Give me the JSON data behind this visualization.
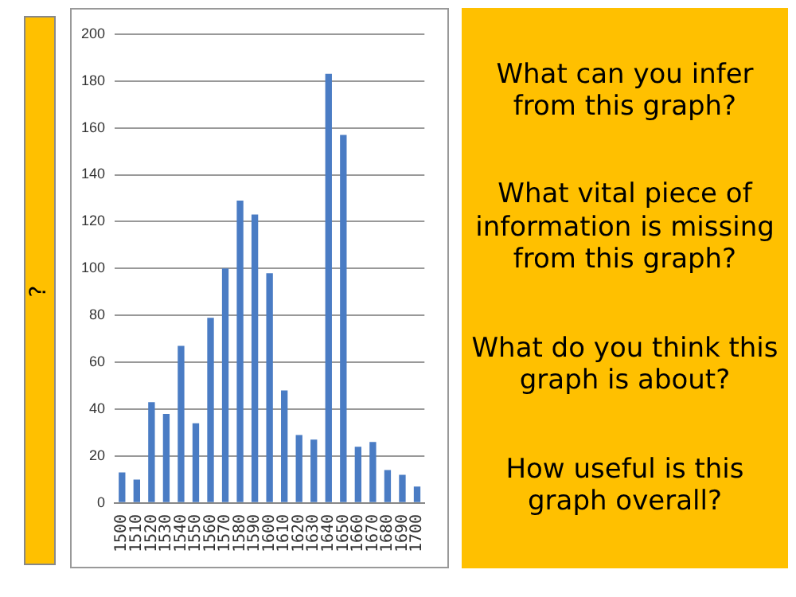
{
  "chart_data": {
    "type": "bar",
    "ylabel": "?",
    "categories": [
      "1500",
      "1510",
      "1520",
      "1530",
      "1540",
      "1550",
      "1560",
      "1570",
      "1580",
      "1590",
      "1600",
      "1610",
      "1620",
      "1630",
      "1640",
      "1650",
      "1660",
      "1670",
      "1680",
      "1690",
      "1700"
    ],
    "values": [
      13,
      10,
      43,
      38,
      67,
      34,
      79,
      100,
      129,
      123,
      98,
      48,
      29,
      27,
      183,
      157,
      24,
      26,
      14,
      12,
      7
    ],
    "color": "#4a7cc4",
    "ylim": [
      0,
      200
    ],
    "yticks": [
      0,
      20,
      40,
      60,
      80,
      100,
      120,
      140,
      160,
      180,
      200
    ],
    "grid": "y",
    "annotations": [
      "What can you infer from this graph?",
      "What vital piece of information is missing from this graph?",
      "What do you think this graph is about?",
      "How useful is this graph overall?"
    ]
  }
}
